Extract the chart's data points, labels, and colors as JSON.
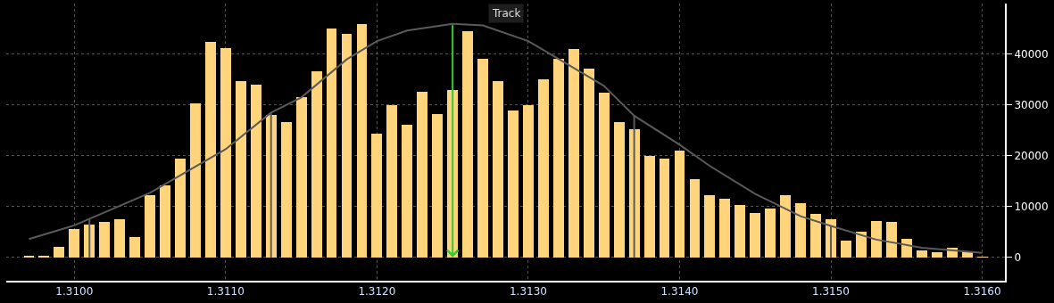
{
  "chart_data": {
    "type": "histogram",
    "bins": [
      1.30965,
      1.30975,
      1.30985,
      1.30995,
      1.31005,
      1.31015,
      1.31025,
      1.31035,
      1.31045,
      1.31055,
      1.31065,
      1.31075,
      1.31085,
      1.31095,
      1.31105,
      1.31115,
      1.31125,
      1.31135,
      1.31145,
      1.31155,
      1.31165,
      1.31175,
      1.31185,
      1.31195,
      1.31205,
      1.31215,
      1.31225,
      1.31235,
      1.31245,
      1.31255,
      1.31265,
      1.31275,
      1.31285,
      1.31295,
      1.31305,
      1.31315,
      1.31325,
      1.31335,
      1.31345,
      1.31355,
      1.31365,
      1.31375,
      1.31385,
      1.31395,
      1.31405,
      1.31415,
      1.31425,
      1.31435,
      1.31445,
      1.31455,
      1.31465,
      1.31475,
      1.31485,
      1.31495,
      1.31505,
      1.31515,
      1.31525,
      1.31535,
      1.31545,
      1.31555,
      1.31565,
      1.31575,
      1.31585,
      1.31595,
      1.31605
    ],
    "values": [
      200,
      400,
      2000,
      5500,
      6500,
      7000,
      7600,
      4000,
      12300,
      14100,
      19400,
      30300,
      42400,
      41200,
      34800,
      34000,
      28000,
      26600,
      31500,
      36600,
      45000,
      44000,
      45900,
      24300,
      29900,
      26200,
      32700,
      28300,
      32900,
      44500,
      39200,
      34700,
      29000,
      29900,
      35000,
      39200,
      41000,
      37100,
      32400,
      26600,
      25200,
      19900,
      19500,
      21100,
      15500,
      12300,
      11600,
      10400,
      8800,
      9700,
      12300,
      10700,
      8600,
      7600,
      3300,
      5100,
      7200,
      7000,
      3700,
      1400,
      1100,
      1900,
      1200,
      100
    ],
    "color": "#ffd47a",
    "series": [
      {
        "type": "line",
        "color": "#5a5a5a",
        "x": [
          1.3097,
          1.31,
          1.3105,
          1.311,
          1.3113,
          1.3115,
          1.3118,
          1.312,
          1.3122,
          1.3125,
          1.3127,
          1.313,
          1.3132,
          1.3135,
          1.3137,
          1.314,
          1.3142,
          1.3145,
          1.3148,
          1.315,
          1.3153,
          1.3156,
          1.316
        ],
        "values": [
          3600,
          6300,
          12700,
          21300,
          28500,
          31500,
          39000,
          42600,
          44700,
          46000,
          45700,
          42600,
          39100,
          33800,
          27900,
          22200,
          18000,
          12500,
          8100,
          6200,
          3500,
          1900,
          900
        ]
      }
    ],
    "ref_lines": [
      {
        "axis": "x",
        "value": 1.3101,
        "color": "#5a5a5a"
      },
      {
        "axis": "x",
        "value": 1.3113,
        "color": "#5a5a5a"
      },
      {
        "axis": "x",
        "value": 1.3137,
        "color": "#5a5a5a"
      },
      {
        "axis": "x",
        "value": 1.315,
        "color": "#5a5a5a"
      },
      {
        "axis": "x",
        "value": 1.3125,
        "color": "#33cc33",
        "line_style": "arrow"
      }
    ],
    "annotations": [
      "Track"
    ],
    "xlim": [
      1.30955,
      1.31615
    ],
    "xticks": [
      {
        "value": 1.31,
        "label": "1.3100"
      },
      {
        "value": 1.311,
        "label": "1.3110"
      },
      {
        "value": 1.312,
        "label": "1.3120"
      },
      {
        "value": 1.313,
        "label": "1.3130"
      },
      {
        "value": 1.314,
        "label": "1.3140"
      },
      {
        "value": 1.315,
        "label": "1.3150"
      },
      {
        "value": 1.316,
        "label": "1.3160"
      }
    ],
    "ylim": [
      -4600,
      50000
    ],
    "yticks": [
      0,
      10000,
      20000,
      30000,
      40000
    ],
    "grid": true
  }
}
